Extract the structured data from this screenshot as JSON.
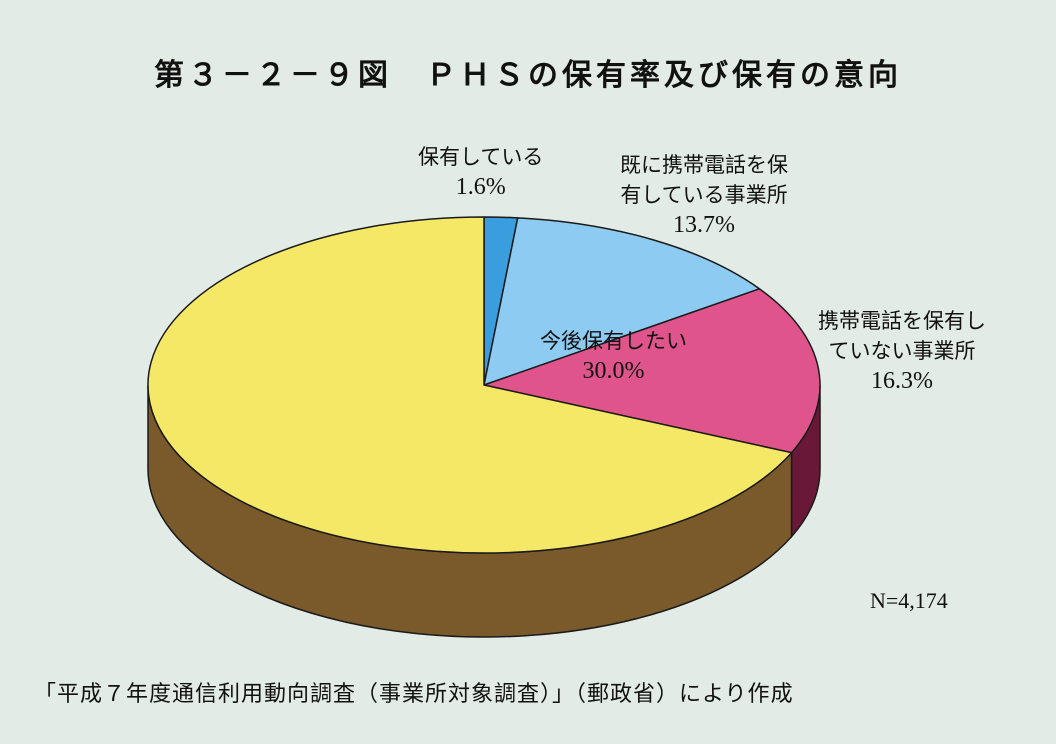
{
  "title": "第３－２－９図　ＰＨＳの保有率及び保有の意向",
  "note": "N=4,174",
  "source": "「平成７年度通信利用動向調査（事業所対象調査）」（郵政省）により作成",
  "chart_data": {
    "type": "pie",
    "title": "第３－２－９図　ＰＨＳの保有率及び保有の意向",
    "slices": [
      {
        "label": "保有している",
        "label_lines": [
          "保有している"
        ],
        "value": 1.6,
        "value_text": "1.6%",
        "color": "#3a9ede"
      },
      {
        "label": "既に携帯電話を保有している事業所",
        "label_lines": [
          "既に携帯電話を保",
          "有している事業所"
        ],
        "value": 13.7,
        "value_text": "13.7%",
        "color": "#8ecbf2"
      },
      {
        "label": "携帯電話を保有していない事業所",
        "label_lines": [
          "携帯電話を保有し",
          "ていない事業所"
        ],
        "value": 16.3,
        "value_text": "16.3%",
        "color": "#e0548c"
      },
      {
        "label": "",
        "label_lines": [],
        "value": 68.4,
        "value_text": "",
        "color": "#f5e866"
      }
    ],
    "group_label": "今後保有したい",
    "group_value_text": "30.0%",
    "side_colors": {
      "yellow": "#7a5a2a",
      "pink": "#6a1838"
    },
    "n": "N=4,174"
  }
}
